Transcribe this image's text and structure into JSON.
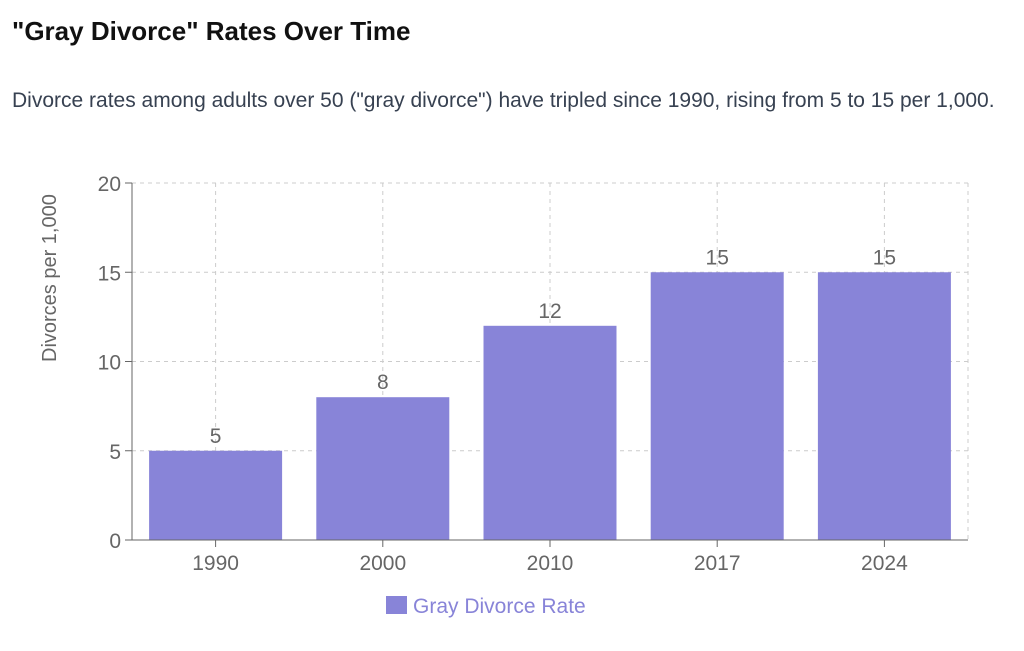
{
  "header": {
    "title": "\"Gray Divorce\" Rates Over Time",
    "subtitle": "Divorce rates among adults over 50 (\"gray divorce\") have tripled since 1990, rising from 5 to 15 per 1,000."
  },
  "colors": {
    "bar": "#8884d8",
    "grid": "#cccccc",
    "axis": "#666666",
    "tick_text": "#666666"
  },
  "chart_data": {
    "type": "bar",
    "categories": [
      "1990",
      "2000",
      "2010",
      "2017",
      "2024"
    ],
    "series": [
      {
        "name": "Gray Divorce Rate",
        "values": [
          5,
          8,
          12,
          15,
          15
        ]
      }
    ],
    "data_labels": [
      "5",
      "8",
      "12",
      "15",
      "15"
    ],
    "title": "",
    "xlabel": "",
    "ylabel": "Divorces per 1,000",
    "ylim": [
      0,
      20
    ],
    "yticks": [
      0,
      5,
      10,
      15,
      20
    ],
    "grid": true,
    "legend_position": "bottom-center"
  }
}
